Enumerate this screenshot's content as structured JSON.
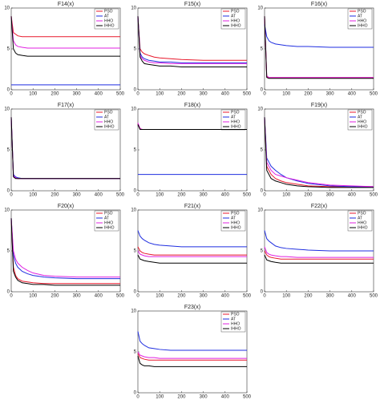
{
  "chart_data": [
    {
      "type": "line",
      "title": "F14(x)",
      "x": [
        0,
        10,
        20,
        30,
        50,
        75,
        100,
        150,
        200,
        300,
        400,
        500
      ],
      "xlim": [
        0,
        500
      ],
      "xticks": [
        0,
        100,
        200,
        300,
        400,
        500
      ],
      "ylim": [
        0,
        10
      ],
      "yticks": [
        0,
        5,
        10
      ],
      "series": [
        {
          "name": "PSO",
          "color": "#e8192c",
          "values": [
            9,
            7,
            6.8,
            6.6,
            6.5,
            6.5,
            6.5,
            6.5,
            6.5,
            6.5,
            6.5,
            6.5
          ]
        },
        {
          "name": "AT",
          "color": "#1f2ee0",
          "values": [
            0.6,
            0.6,
            0.6,
            0.6,
            0.6,
            0.6,
            0.6,
            0.6,
            0.6,
            0.6,
            0.6,
            0.6
          ]
        },
        {
          "name": "HHO",
          "color": "#e020e0",
          "values": [
            9,
            6,
            5.5,
            5.3,
            5.2,
            5.1,
            5.1,
            5.1,
            5.1,
            5.1,
            5.1,
            5.1
          ]
        },
        {
          "name": "IHHO",
          "color": "#000000",
          "values": [
            9,
            5,
            4.5,
            4.3,
            4.2,
            4.1,
            4.1,
            4.1,
            4.1,
            4.1,
            4.1,
            4.1
          ]
        }
      ]
    },
    {
      "type": "line",
      "title": "F15(x)",
      "x": [
        0,
        10,
        20,
        30,
        50,
        75,
        100,
        150,
        200,
        300,
        400,
        500
      ],
      "xlim": [
        0,
        500
      ],
      "xticks": [
        0,
        100,
        200,
        300,
        400,
        500
      ],
      "ylim": [
        0,
        10
      ],
      "yticks": [
        0,
        5,
        10
      ],
      "series": [
        {
          "name": "PSO",
          "color": "#e8192c",
          "values": [
            9,
            5,
            4.6,
            4.4,
            4.2,
            4,
            3.9,
            3.8,
            3.7,
            3.6,
            3.6,
            3.6
          ]
        },
        {
          "name": "AT",
          "color": "#1f2ee0",
          "values": [
            9,
            4.5,
            4,
            3.8,
            3.6,
            3.5,
            3.4,
            3.4,
            3.3,
            3.3,
            3.3,
            3.3
          ]
        },
        {
          "name": "HHO",
          "color": "#e020e0",
          "values": [
            9,
            4.2,
            3.8,
            3.6,
            3.4,
            3.3,
            3.3,
            3.2,
            3.2,
            3.2,
            3.2,
            3.2
          ]
        },
        {
          "name": "IHHO",
          "color": "#000000",
          "values": [
            9,
            4,
            3.5,
            3.2,
            3.1,
            3,
            2.9,
            2.9,
            2.8,
            2.8,
            2.8,
            2.8
          ]
        }
      ]
    },
    {
      "type": "line",
      "title": "F16(x)",
      "x": [
        0,
        10,
        20,
        30,
        50,
        75,
        100,
        150,
        200,
        300,
        400,
        500
      ],
      "xlim": [
        0,
        500
      ],
      "xticks": [
        0,
        100,
        200,
        300,
        400,
        500
      ],
      "ylim": [
        0,
        10
      ],
      "yticks": [
        0,
        5,
        10
      ],
      "series": [
        {
          "name": "PSO",
          "color": "#e8192c",
          "values": [
            9,
            1.6,
            1.5,
            1.5,
            1.5,
            1.5,
            1.5,
            1.5,
            1.5,
            1.5,
            1.5,
            1.5
          ]
        },
        {
          "name": "AT",
          "color": "#1f2ee0",
          "values": [
            8,
            6.5,
            6,
            5.8,
            5.6,
            5.5,
            5.4,
            5.3,
            5.3,
            5.2,
            5.2,
            5.2
          ]
        },
        {
          "name": "HHO",
          "color": "#e020e0",
          "values": [
            9,
            1.7,
            1.5,
            1.5,
            1.5,
            1.5,
            1.5,
            1.5,
            1.5,
            1.5,
            1.5,
            1.5
          ]
        },
        {
          "name": "IHHO",
          "color": "#000000",
          "values": [
            9,
            1.5,
            1.4,
            1.4,
            1.4,
            1.4,
            1.4,
            1.4,
            1.4,
            1.4,
            1.4,
            1.4
          ]
        }
      ]
    },
    {
      "type": "line",
      "title": "F17(x)",
      "x": [
        0,
        10,
        20,
        30,
        50,
        75,
        100,
        150,
        200,
        300,
        400,
        500
      ],
      "xlim": [
        0,
        500
      ],
      "xticks": [
        0,
        100,
        200,
        300,
        400,
        500
      ],
      "ylim": [
        0,
        10
      ],
      "yticks": [
        0,
        5,
        10
      ],
      "series": [
        {
          "name": "PSO",
          "color": "#e8192c",
          "values": [
            9,
            1.8,
            1.6,
            1.5,
            1.5,
            1.5,
            1.5,
            1.5,
            1.5,
            1.5,
            1.5,
            1.5
          ]
        },
        {
          "name": "AT",
          "color": "#1f2ee0",
          "values": [
            9,
            2,
            1.7,
            1.6,
            1.5,
            1.5,
            1.5,
            1.5,
            1.5,
            1.5,
            1.5,
            1.5
          ]
        },
        {
          "name": "HHO",
          "color": "#e020e0",
          "values": [
            9,
            1.8,
            1.6,
            1.5,
            1.5,
            1.5,
            1.5,
            1.5,
            1.5,
            1.5,
            1.5,
            1.5
          ]
        },
        {
          "name": "IHHO",
          "color": "#000000",
          "values": [
            9,
            1.7,
            1.5,
            1.5,
            1.5,
            1.5,
            1.5,
            1.5,
            1.5,
            1.5,
            1.5,
            1.5
          ]
        }
      ]
    },
    {
      "type": "line",
      "title": "F18(x)",
      "x": [
        0,
        10,
        20,
        30,
        50,
        75,
        100,
        150,
        200,
        300,
        400,
        500
      ],
      "xlim": [
        0,
        500
      ],
      "xticks": [
        0,
        100,
        200,
        300,
        400,
        500
      ],
      "ylim": [
        0,
        10
      ],
      "yticks": [
        0,
        5,
        10
      ],
      "series": [
        {
          "name": "PSO",
          "color": "#e8192c",
          "values": [
            8.2,
            7.6,
            7.5,
            7.5,
            7.5,
            7.5,
            7.5,
            7.5,
            7.5,
            7.5,
            7.5,
            7.5
          ]
        },
        {
          "name": "AT",
          "color": "#1f2ee0",
          "values": [
            2,
            2,
            2,
            2,
            2,
            2,
            2,
            2,
            2,
            2,
            2,
            2
          ]
        },
        {
          "name": "HHO",
          "color": "#e020e0",
          "values": [
            8.3,
            7.6,
            7.5,
            7.5,
            7.5,
            7.5,
            7.5,
            7.5,
            7.5,
            7.5,
            7.5,
            7.5
          ]
        },
        {
          "name": "IHHO",
          "color": "#000000",
          "values": [
            8.1,
            7.5,
            7.5,
            7.5,
            7.5,
            7.5,
            7.5,
            7.5,
            7.5,
            7.5,
            7.5,
            7.5
          ]
        }
      ]
    },
    {
      "type": "line",
      "title": "F19(x)",
      "x": [
        0,
        10,
        20,
        30,
        50,
        75,
        100,
        150,
        200,
        300,
        400,
        500
      ],
      "xlim": [
        0,
        500
      ],
      "xticks": [
        0,
        100,
        200,
        300,
        400,
        500
      ],
      "ylim": [
        0,
        10
      ],
      "yticks": [
        0,
        5,
        10
      ],
      "series": [
        {
          "name": "PSO",
          "color": "#e8192c",
          "values": [
            9,
            3,
            2.5,
            2,
            1.5,
            1.2,
            1,
            0.8,
            0.6,
            0.5,
            0.5,
            0.5
          ]
        },
        {
          "name": "AT",
          "color": "#1f2ee0",
          "values": [
            9,
            4,
            3.5,
            3,
            2.5,
            2,
            1.6,
            1.2,
            0.9,
            0.6,
            0.5,
            0.5
          ]
        },
        {
          "name": "HHO",
          "color": "#e020e0",
          "values": [
            9,
            3.5,
            3,
            2.5,
            2,
            1.8,
            1.6,
            1.3,
            1,
            0.7,
            0.6,
            0.5
          ]
        },
        {
          "name": "IHHO",
          "color": "#000000",
          "values": [
            9,
            2.5,
            2,
            1.5,
            1.2,
            1,
            0.8,
            0.6,
            0.5,
            0.4,
            0.4,
            0.4
          ]
        }
      ]
    },
    {
      "type": "line",
      "title": "F20(x)",
      "x": [
        0,
        10,
        20,
        30,
        50,
        75,
        100,
        150,
        200,
        300,
        400,
        500
      ],
      "xlim": [
        0,
        500
      ],
      "xticks": [
        0,
        100,
        200,
        300,
        400,
        500
      ],
      "ylim": [
        0,
        10
      ],
      "yticks": [
        0,
        5,
        10
      ],
      "series": [
        {
          "name": "PSO",
          "color": "#e8192c",
          "values": [
            9,
            3,
            2,
            1.6,
            1.3,
            1.2,
            1.1,
            1,
            1,
            1,
            1,
            1
          ]
        },
        {
          "name": "AT",
          "color": "#1f2ee0",
          "values": [
            9,
            4.5,
            3.5,
            3,
            2.5,
            2.2,
            2,
            1.8,
            1.7,
            1.6,
            1.6,
            1.6
          ]
        },
        {
          "name": "HHO",
          "color": "#e020e0",
          "values": [
            9,
            5,
            4,
            3.5,
            3,
            2.6,
            2.3,
            2,
            1.9,
            1.8,
            1.8,
            1.8
          ]
        },
        {
          "name": "IHHO",
          "color": "#000000",
          "values": [
            9,
            2.5,
            1.8,
            1.4,
            1.1,
            1,
            0.9,
            0.9,
            0.8,
            0.8,
            0.8,
            0.8
          ]
        }
      ]
    },
    {
      "type": "line",
      "title": "F21(x)",
      "x": [
        0,
        10,
        20,
        30,
        50,
        75,
        100,
        150,
        200,
        300,
        400,
        500
      ],
      "xlim": [
        0,
        500
      ],
      "xticks": [
        0,
        100,
        200,
        300,
        400,
        500
      ],
      "ylim": [
        0,
        10
      ],
      "yticks": [
        0,
        5,
        10
      ],
      "series": [
        {
          "name": "PSO",
          "color": "#e8192c",
          "values": [
            5.5,
            5,
            4.8,
            4.7,
            4.6,
            4.5,
            4.5,
            4.5,
            4.5,
            4.5,
            4.5,
            4.5
          ]
        },
        {
          "name": "AT",
          "color": "#1f2ee0",
          "values": [
            7.5,
            6.8,
            6.5,
            6.3,
            6,
            5.8,
            5.7,
            5.6,
            5.5,
            5.5,
            5.5,
            5.5
          ]
        },
        {
          "name": "HHO",
          "color": "#e020e0",
          "values": [
            5,
            4.6,
            4.5,
            4.4,
            4.3,
            4.3,
            4.3,
            4.3,
            4.3,
            4.3,
            4.3,
            4.3
          ]
        },
        {
          "name": "IHHO",
          "color": "#000000",
          "values": [
            4.5,
            4,
            3.9,
            3.8,
            3.7,
            3.6,
            3.5,
            3.5,
            3.5,
            3.5,
            3.5,
            3.5
          ]
        }
      ]
    },
    {
      "type": "line",
      "title": "F22(x)",
      "x": [
        0,
        10,
        20,
        30,
        50,
        75,
        100,
        150,
        200,
        300,
        400,
        500
      ],
      "xlim": [
        0,
        500
      ],
      "xticks": [
        0,
        100,
        200,
        300,
        400,
        500
      ],
      "ylim": [
        0,
        10
      ],
      "yticks": [
        0,
        5,
        10
      ],
      "series": [
        {
          "name": "PSO",
          "color": "#e8192c",
          "values": [
            5,
            4.5,
            4.3,
            4.2,
            4.1,
            4,
            4,
            4,
            4,
            4,
            4,
            4
          ]
        },
        {
          "name": "AT",
          "color": "#1f2ee0",
          "values": [
            7.5,
            6.5,
            6.2,
            6,
            5.6,
            5.4,
            5.3,
            5.2,
            5.1,
            5,
            5,
            5
          ]
        },
        {
          "name": "HHO",
          "color": "#e020e0",
          "values": [
            5.5,
            4.8,
            4.6,
            4.5,
            4.4,
            4.3,
            4.3,
            4.2,
            4.2,
            4.2,
            4.2,
            4.2
          ]
        },
        {
          "name": "IHHO",
          "color": "#000000",
          "values": [
            4.5,
            3.9,
            3.8,
            3.7,
            3.6,
            3.5,
            3.5,
            3.5,
            3.5,
            3.5,
            3.5,
            3.5
          ]
        }
      ]
    },
    {
      "type": "line",
      "title": "F23(x)",
      "x": [
        0,
        10,
        20,
        30,
        50,
        75,
        100,
        150,
        200,
        300,
        400,
        500
      ],
      "xlim": [
        0,
        500
      ],
      "xticks": [
        0,
        100,
        200,
        300,
        400,
        500
      ],
      "ylim": [
        0,
        10
      ],
      "yticks": [
        0,
        5,
        10
      ],
      "series": [
        {
          "name": "PSO",
          "color": "#e8192c",
          "values": [
            4.8,
            4.3,
            4.2,
            4.1,
            4,
            4,
            4,
            4,
            4,
            4,
            4,
            4
          ]
        },
        {
          "name": "AT",
          "color": "#1f2ee0",
          "values": [
            7.5,
            6.3,
            6,
            5.8,
            5.5,
            5.4,
            5.3,
            5.2,
            5.2,
            5.2,
            5.2,
            5.2
          ]
        },
        {
          "name": "HHO",
          "color": "#e020e0",
          "values": [
            5,
            4.6,
            4.5,
            4.4,
            4.3,
            4.3,
            4.2,
            4.2,
            4.2,
            4.2,
            4.2,
            4.2
          ]
        },
        {
          "name": "IHHO",
          "color": "#000000",
          "values": [
            4.5,
            3.6,
            3.4,
            3.3,
            3.3,
            3.2,
            3.2,
            3.2,
            3.2,
            3.2,
            3.2,
            3.2
          ]
        }
      ]
    }
  ]
}
